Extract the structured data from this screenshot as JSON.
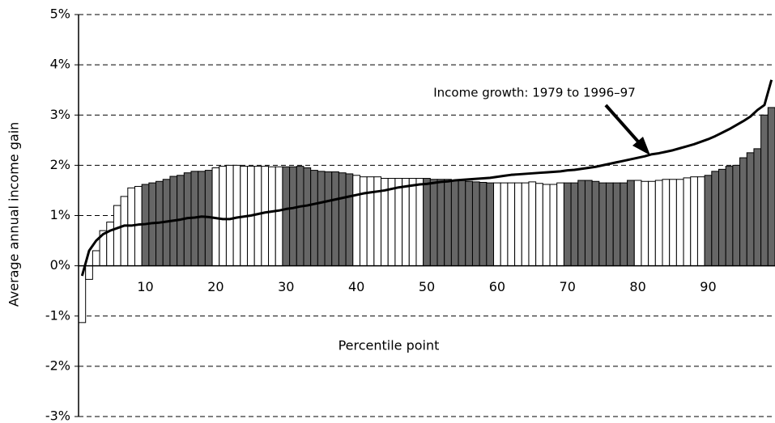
{
  "chart_data": {
    "type": "bar-line",
    "y_label": "Average annual income gain",
    "x_label": "Percentile point",
    "annotation": "Income growth: 1979 to 1996–97",
    "categories": [
      null,
      null,
      null,
      null,
      null,
      null,
      null,
      null,
      null,
      "10",
      null,
      null,
      null,
      null,
      null,
      null,
      null,
      null,
      null,
      "20",
      null,
      null,
      null,
      null,
      null,
      null,
      null,
      null,
      null,
      "30",
      null,
      null,
      null,
      null,
      null,
      null,
      null,
      null,
      null,
      "40",
      null,
      null,
      null,
      null,
      null,
      null,
      null,
      null,
      null,
      "50",
      null,
      null,
      null,
      null,
      null,
      null,
      null,
      null,
      null,
      "60",
      null,
      null,
      null,
      null,
      null,
      null,
      null,
      null,
      null,
      "70",
      null,
      null,
      null,
      null,
      null,
      null,
      null,
      null,
      null,
      "80",
      null,
      null,
      null,
      null,
      null,
      null,
      null,
      null,
      null,
      "90",
      null,
      null,
      null,
      null,
      null,
      null,
      null,
      null,
      null
    ],
    "bars": {
      "values": [
        -1.13,
        -0.27,
        0.3,
        0.7,
        0.87,
        1.2,
        1.38,
        1.55,
        1.58,
        1.62,
        1.65,
        1.68,
        1.72,
        1.78,
        1.8,
        1.85,
        1.88,
        1.88,
        1.9,
        1.95,
        1.98,
        2.0,
        2.0,
        1.98,
        1.98,
        1.98,
        1.98,
        1.97,
        1.97,
        1.97,
        1.97,
        1.98,
        1.95,
        1.9,
        1.88,
        1.87,
        1.87,
        1.85,
        1.83,
        1.8,
        1.77,
        1.77,
        1.77,
        1.74,
        1.74,
        1.74,
        1.74,
        1.74,
        1.74,
        1.74,
        1.72,
        1.72,
        1.72,
        1.7,
        1.7,
        1.68,
        1.67,
        1.66,
        1.65,
        1.65,
        1.65,
        1.65,
        1.65,
        1.65,
        1.67,
        1.64,
        1.62,
        1.62,
        1.65,
        1.65,
        1.65,
        1.7,
        1.7,
        1.68,
        1.65,
        1.65,
        1.65,
        1.65,
        1.7,
        1.7,
        1.68,
        1.68,
        1.7,
        1.72,
        1.72,
        1.72,
        1.75,
        1.77,
        1.77,
        1.8,
        1.88,
        1.92,
        1.98,
        2.0,
        2.15,
        2.25,
        2.33,
        3.0,
        3.15
      ],
      "colors": [
        "#ffffff",
        "#ffffff",
        "#ffffff",
        "#ffffff",
        "#ffffff",
        "#ffffff",
        "#ffffff",
        "#ffffff",
        "#ffffff",
        "#666666",
        "#666666",
        "#666666",
        "#666666",
        "#666666",
        "#666666",
        "#666666",
        "#666666",
        "#666666",
        "#666666",
        "#ffffff",
        "#ffffff",
        "#ffffff",
        "#ffffff",
        "#ffffff",
        "#ffffff",
        "#ffffff",
        "#ffffff",
        "#ffffff",
        "#ffffff",
        "#666666",
        "#666666",
        "#666666",
        "#666666",
        "#666666",
        "#666666",
        "#666666",
        "#666666",
        "#666666",
        "#666666",
        "#ffffff",
        "#ffffff",
        "#ffffff",
        "#ffffff",
        "#ffffff",
        "#ffffff",
        "#ffffff",
        "#ffffff",
        "#ffffff",
        "#ffffff",
        "#666666",
        "#666666",
        "#666666",
        "#666666",
        "#666666",
        "#666666",
        "#666666",
        "#666666",
        "#666666",
        "#666666",
        "#ffffff",
        "#ffffff",
        "#ffffff",
        "#ffffff",
        "#ffffff",
        "#ffffff",
        "#ffffff",
        "#ffffff",
        "#ffffff",
        "#ffffff",
        "#666666",
        "#666666",
        "#666666",
        "#666666",
        "#666666",
        "#666666",
        "#666666",
        "#666666",
        "#666666",
        "#666666",
        "#ffffff",
        "#ffffff",
        "#ffffff",
        "#ffffff",
        "#ffffff",
        "#ffffff",
        "#ffffff",
        "#ffffff",
        "#ffffff",
        "#ffffff",
        "#666666",
        "#666666",
        "#666666",
        "#666666",
        "#666666",
        "#666666",
        "#666666",
        "#666666",
        "#666666",
        "#666666"
      ]
    },
    "line": {
      "color": "#000000",
      "values": [
        -0.2,
        0.3,
        0.5,
        0.63,
        0.7,
        0.75,
        0.8,
        0.8,
        0.82,
        0.83,
        0.85,
        0.86,
        0.88,
        0.9,
        0.92,
        0.95,
        0.96,
        0.98,
        0.97,
        0.95,
        0.93,
        0.93,
        0.96,
        0.98,
        1.0,
        1.03,
        1.06,
        1.08,
        1.1,
        1.13,
        1.15,
        1.18,
        1.2,
        1.23,
        1.26,
        1.29,
        1.32,
        1.35,
        1.38,
        1.41,
        1.44,
        1.46,
        1.48,
        1.5,
        1.53,
        1.56,
        1.58,
        1.6,
        1.62,
        1.63,
        1.65,
        1.67,
        1.68,
        1.7,
        1.71,
        1.72,
        1.73,
        1.74,
        1.75,
        1.77,
        1.79,
        1.81,
        1.82,
        1.83,
        1.84,
        1.85,
        1.86,
        1.87,
        1.88,
        1.9,
        1.91,
        1.93,
        1.95,
        1.97,
        2.0,
        2.03,
        2.06,
        2.09,
        2.12,
        2.15,
        2.18,
        2.22,
        2.24,
        2.27,
        2.3,
        2.34,
        2.38,
        2.42,
        2.47,
        2.52,
        2.58,
        2.65,
        2.72,
        2.8,
        2.88,
        2.97,
        3.1,
        3.2,
        3.7
      ]
    },
    "ylim": [
      -3,
      5
    ],
    "yticks": [
      {
        "value": -3,
        "label": "-3%"
      },
      {
        "value": -2,
        "label": "-2%"
      },
      {
        "value": -1,
        "label": "-1%"
      },
      {
        "value": 0,
        "label": "0%"
      },
      {
        "value": 1,
        "label": "1%"
      },
      {
        "value": 2,
        "label": "2%"
      },
      {
        "value": 3,
        "label": "3%"
      },
      {
        "value": 4,
        "label": "4%"
      },
      {
        "value": 5,
        "label": "5%"
      }
    ],
    "grid": true
  }
}
